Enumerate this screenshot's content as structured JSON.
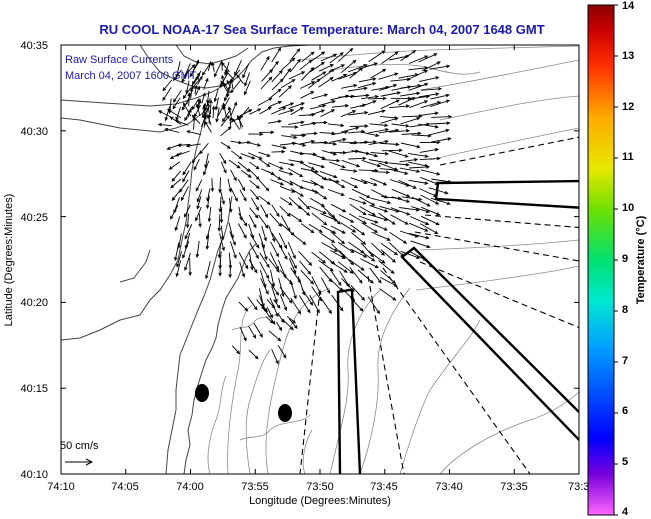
{
  "title": "RU COOL  NOAA-17  Sea Surface Temperature:  March 04, 2007 1648 GMT",
  "legend": {
    "line1": "Raw Surface Currents",
    "line2": "March 04, 2007 1600 GMT",
    "scale_label": "50 cm/s"
  },
  "axes": {
    "xlabel": "Longitude (Degrees:Minutes)",
    "ylabel": "Latitude (Degrees:Minutes)",
    "xticks": [
      "74:10",
      "74:05",
      "74:00",
      "73:55",
      "73:50",
      "73:45",
      "73:40",
      "73:35",
      "73:3"
    ],
    "yticks": [
      "40:35",
      "40:30",
      "40:25",
      "40:20",
      "40:15",
      "40:10"
    ]
  },
  "colorbar": {
    "label": "Temperature (°C)",
    "ticks": [
      "14",
      "13",
      "12",
      "11",
      "10",
      "9",
      "8",
      "7",
      "6",
      "5",
      "4"
    ],
    "stops": [
      "#ff66ff",
      "#7700dd",
      "#0000ff",
      "#00a0ff",
      "#00e8d0",
      "#00e070",
      "#70e000",
      "#e8e800",
      "#ffaa00",
      "#ff3000",
      "#cc0000",
      "#8a0000"
    ]
  },
  "colors": {
    "title": "#1a1aa8",
    "axes": "#000000",
    "land_outline": "#444444",
    "bathymetry": "#8a8a8a"
  }
}
